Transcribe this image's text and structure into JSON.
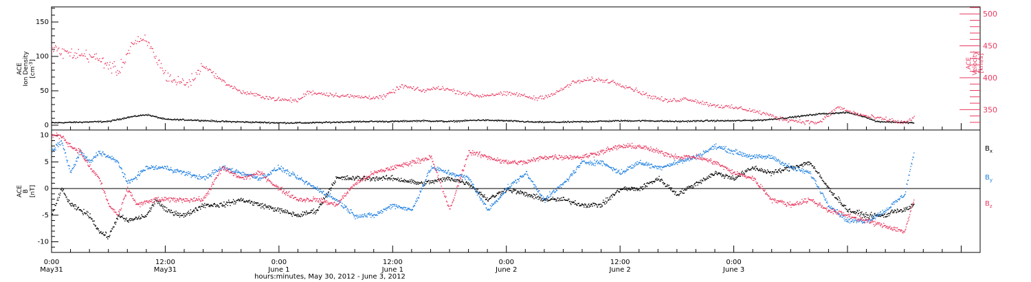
{
  "colors": {
    "black": "#000000",
    "red": "#e8365e",
    "blue": "#1a7ddf"
  },
  "chart_data": [
    {
      "type": "scatter",
      "panel": "top",
      "left_axis": {
        "label_lines": [
          "ACE",
          "Ion Density"
        ],
        "unit_base": "[cm",
        "unit_sup": "-3",
        "unit_close": "]",
        "ylim": [
          -7,
          172
        ],
        "ticks": [
          0,
          50,
          100,
          150
        ],
        "tick_labels": [
          "0",
          "50",
          "100",
          "150"
        ]
      },
      "right_axis": {
        "label_lines": [
          "ACE",
          "Velocity",
          "[km/s]"
        ],
        "ylim": [
          318,
          511
        ],
        "ticks": [
          350,
          400,
          450,
          500
        ],
        "tick_labels": [
          "350",
          "400",
          "450",
          "500"
        ]
      },
      "series": [
        {
          "key": "density",
          "axis": "left",
          "color_key": "black",
          "x": [
            0,
            3,
            6,
            8,
            10,
            12,
            15,
            18,
            21,
            24,
            27,
            30,
            33,
            36,
            39,
            42,
            45,
            48,
            51,
            54,
            57,
            60,
            63,
            66,
            69,
            72,
            75,
            78,
            81,
            84,
            86,
            87,
            89,
            91
          ],
          "y": [
            4,
            5,
            6,
            12,
            16,
            9,
            8,
            6,
            5,
            4,
            4,
            5,
            6,
            6,
            7,
            6,
            8,
            7,
            5,
            5,
            6,
            7,
            7,
            6,
            7,
            7,
            8,
            12,
            17,
            19,
            12,
            6,
            5,
            4
          ]
        },
        {
          "key": "velocity",
          "axis": "right",
          "color_key": "red",
          "x": [
            0,
            2,
            4,
            5.5,
            7,
            8.5,
            10,
            12,
            13,
            14.5,
            16,
            18,
            20,
            22,
            24,
            26,
            27,
            29,
            31,
            33,
            35,
            37,
            39,
            41,
            43,
            45,
            47,
            49,
            51,
            53,
            55,
            57,
            59,
            61,
            63,
            65,
            67,
            69,
            71,
            73,
            75,
            77,
            79,
            81,
            83,
            84,
            86,
            88,
            90,
            91
          ],
          "y": [
            445,
            438,
            435,
            425,
            410,
            455,
            458,
            405,
            395,
            392,
            420,
            395,
            378,
            372,
            366,
            365,
            378,
            375,
            372,
            370,
            370,
            388,
            380,
            385,
            378,
            372,
            375,
            375,
            368,
            375,
            393,
            398,
            395,
            385,
            372,
            364,
            368,
            360,
            355,
            352,
            345,
            336,
            332,
            330,
            355,
            348,
            340,
            335,
            330,
            338
          ]
        }
      ]
    },
    {
      "type": "scatter",
      "panel": "bottom",
      "left_axis": {
        "label_lines": [
          "ACE",
          "B",
          "[nT]"
        ],
        "ylim": [
          -12,
          11
        ],
        "ticks": [
          -10,
          -5,
          0,
          5,
          10
        ],
        "tick_labels": [
          "-10",
          "-5",
          "0",
          "5",
          "10"
        ]
      },
      "legend": [
        {
          "base": "B",
          "sub": "x",
          "color_key": "black"
        },
        {
          "base": "B",
          "sub": "y",
          "color_key": "blue"
        },
        {
          "base": "B",
          "sub": "z",
          "color_key": "red"
        }
      ],
      "series": [
        {
          "key": "Bx",
          "color_key": "black",
          "x": [
            0,
            1,
            2,
            3,
            4,
            5,
            6,
            7,
            8,
            10,
            11,
            12,
            14,
            16,
            18,
            20,
            22,
            24,
            26,
            28,
            30,
            33,
            36,
            39,
            42,
            44,
            46,
            48,
            50,
            52,
            54,
            56,
            58,
            60,
            62,
            64,
            66,
            68,
            70,
            72,
            74,
            76,
            78,
            80,
            82,
            84,
            86,
            88,
            89,
            90,
            91
          ],
          "y": [
            -5,
            0,
            -3,
            -4,
            -5,
            -8,
            -9,
            -5,
            -6,
            -5,
            -2,
            -4,
            -5,
            -3,
            -3,
            -2,
            -3,
            -4,
            -5,
            -4,
            2,
            2,
            2,
            1,
            2,
            1,
            -2,
            0,
            -1,
            -2,
            -2,
            -3,
            -3,
            0,
            0,
            2,
            -1,
            1,
            3,
            2,
            4,
            3,
            4,
            5,
            0,
            -4,
            -5,
            -5,
            -4,
            -4,
            -3
          ]
        },
        {
          "key": "By",
          "color_key": "blue",
          "x": [
            0,
            1,
            2,
            3,
            4,
            5,
            6,
            7,
            8,
            10,
            12,
            14,
            16,
            18,
            20,
            22,
            24,
            26,
            28,
            30,
            32,
            34,
            36,
            38,
            40,
            42,
            44,
            46,
            48,
            50,
            52,
            54,
            56,
            58,
            60,
            62,
            64,
            66,
            68,
            70,
            72,
            74,
            76,
            78,
            80,
            82,
            84,
            86,
            88,
            90,
            91
          ],
          "y": [
            7,
            9,
            3,
            7,
            5,
            7,
            6,
            5,
            1,
            4,
            4,
            3,
            2,
            4,
            3,
            2,
            4,
            2,
            0,
            -2,
            -5,
            -5,
            -3,
            -4,
            4,
            3,
            2,
            -4,
            0,
            3,
            -2,
            1,
            5,
            5,
            3,
            5,
            4,
            5,
            6,
            8,
            7,
            6,
            6,
            4,
            3,
            -3,
            -6,
            -6,
            -4,
            -1,
            7
          ]
        },
        {
          "key": "Bz",
          "color_key": "red",
          "x": [
            0,
            1,
            2,
            3,
            4,
            5,
            6,
            7,
            8,
            9,
            11,
            13,
            16,
            18,
            20,
            22,
            24,
            26,
            28,
            30,
            32,
            34,
            36,
            38,
            40,
            42,
            44,
            46,
            48,
            50,
            52,
            54,
            56,
            58,
            60,
            62,
            64,
            66,
            68,
            70,
            72,
            74,
            76,
            78,
            80,
            82,
            84,
            86,
            88,
            90,
            91
          ],
          "y": [
            10,
            10,
            8,
            7,
            4,
            2,
            -3,
            -5,
            0,
            -3,
            -2,
            -2,
            -2,
            4,
            2,
            3,
            0,
            -2,
            -2,
            -3,
            1,
            3,
            4,
            5,
            6,
            -4,
            7,
            6,
            5,
            5,
            6,
            6,
            6,
            7,
            8,
            8,
            7,
            6,
            6,
            5,
            3,
            2,
            -2,
            -3,
            -2,
            -4,
            -5,
            -6,
            -7,
            -8,
            -2
          ]
        }
      ]
    }
  ],
  "x_axis": {
    "range": [
      0,
      98
    ],
    "major_ticks": [
      0,
      12,
      24,
      36,
      48,
      60,
      72,
      84,
      96
    ],
    "labels": [
      {
        "x": 0,
        "line1": "0:00",
        "line2": "May31"
      },
      {
        "x": 12,
        "line1": "12:00",
        "line2": "May31"
      },
      {
        "x": 24,
        "line1": "0:00",
        "line2": "June 1"
      },
      {
        "x": 36,
        "line1": "12:00",
        "line2": "June 1"
      },
      {
        "x": 48,
        "line1": "0:00",
        "line2": "June 2"
      },
      {
        "x": 60,
        "line1": "12:00",
        "line2": "June 2"
      },
      {
        "x": 72,
        "line1": "0:00",
        "line2": "June 3"
      }
    ],
    "title": "hours:minutes, May 30, 2012 - June  3, 2012"
  }
}
